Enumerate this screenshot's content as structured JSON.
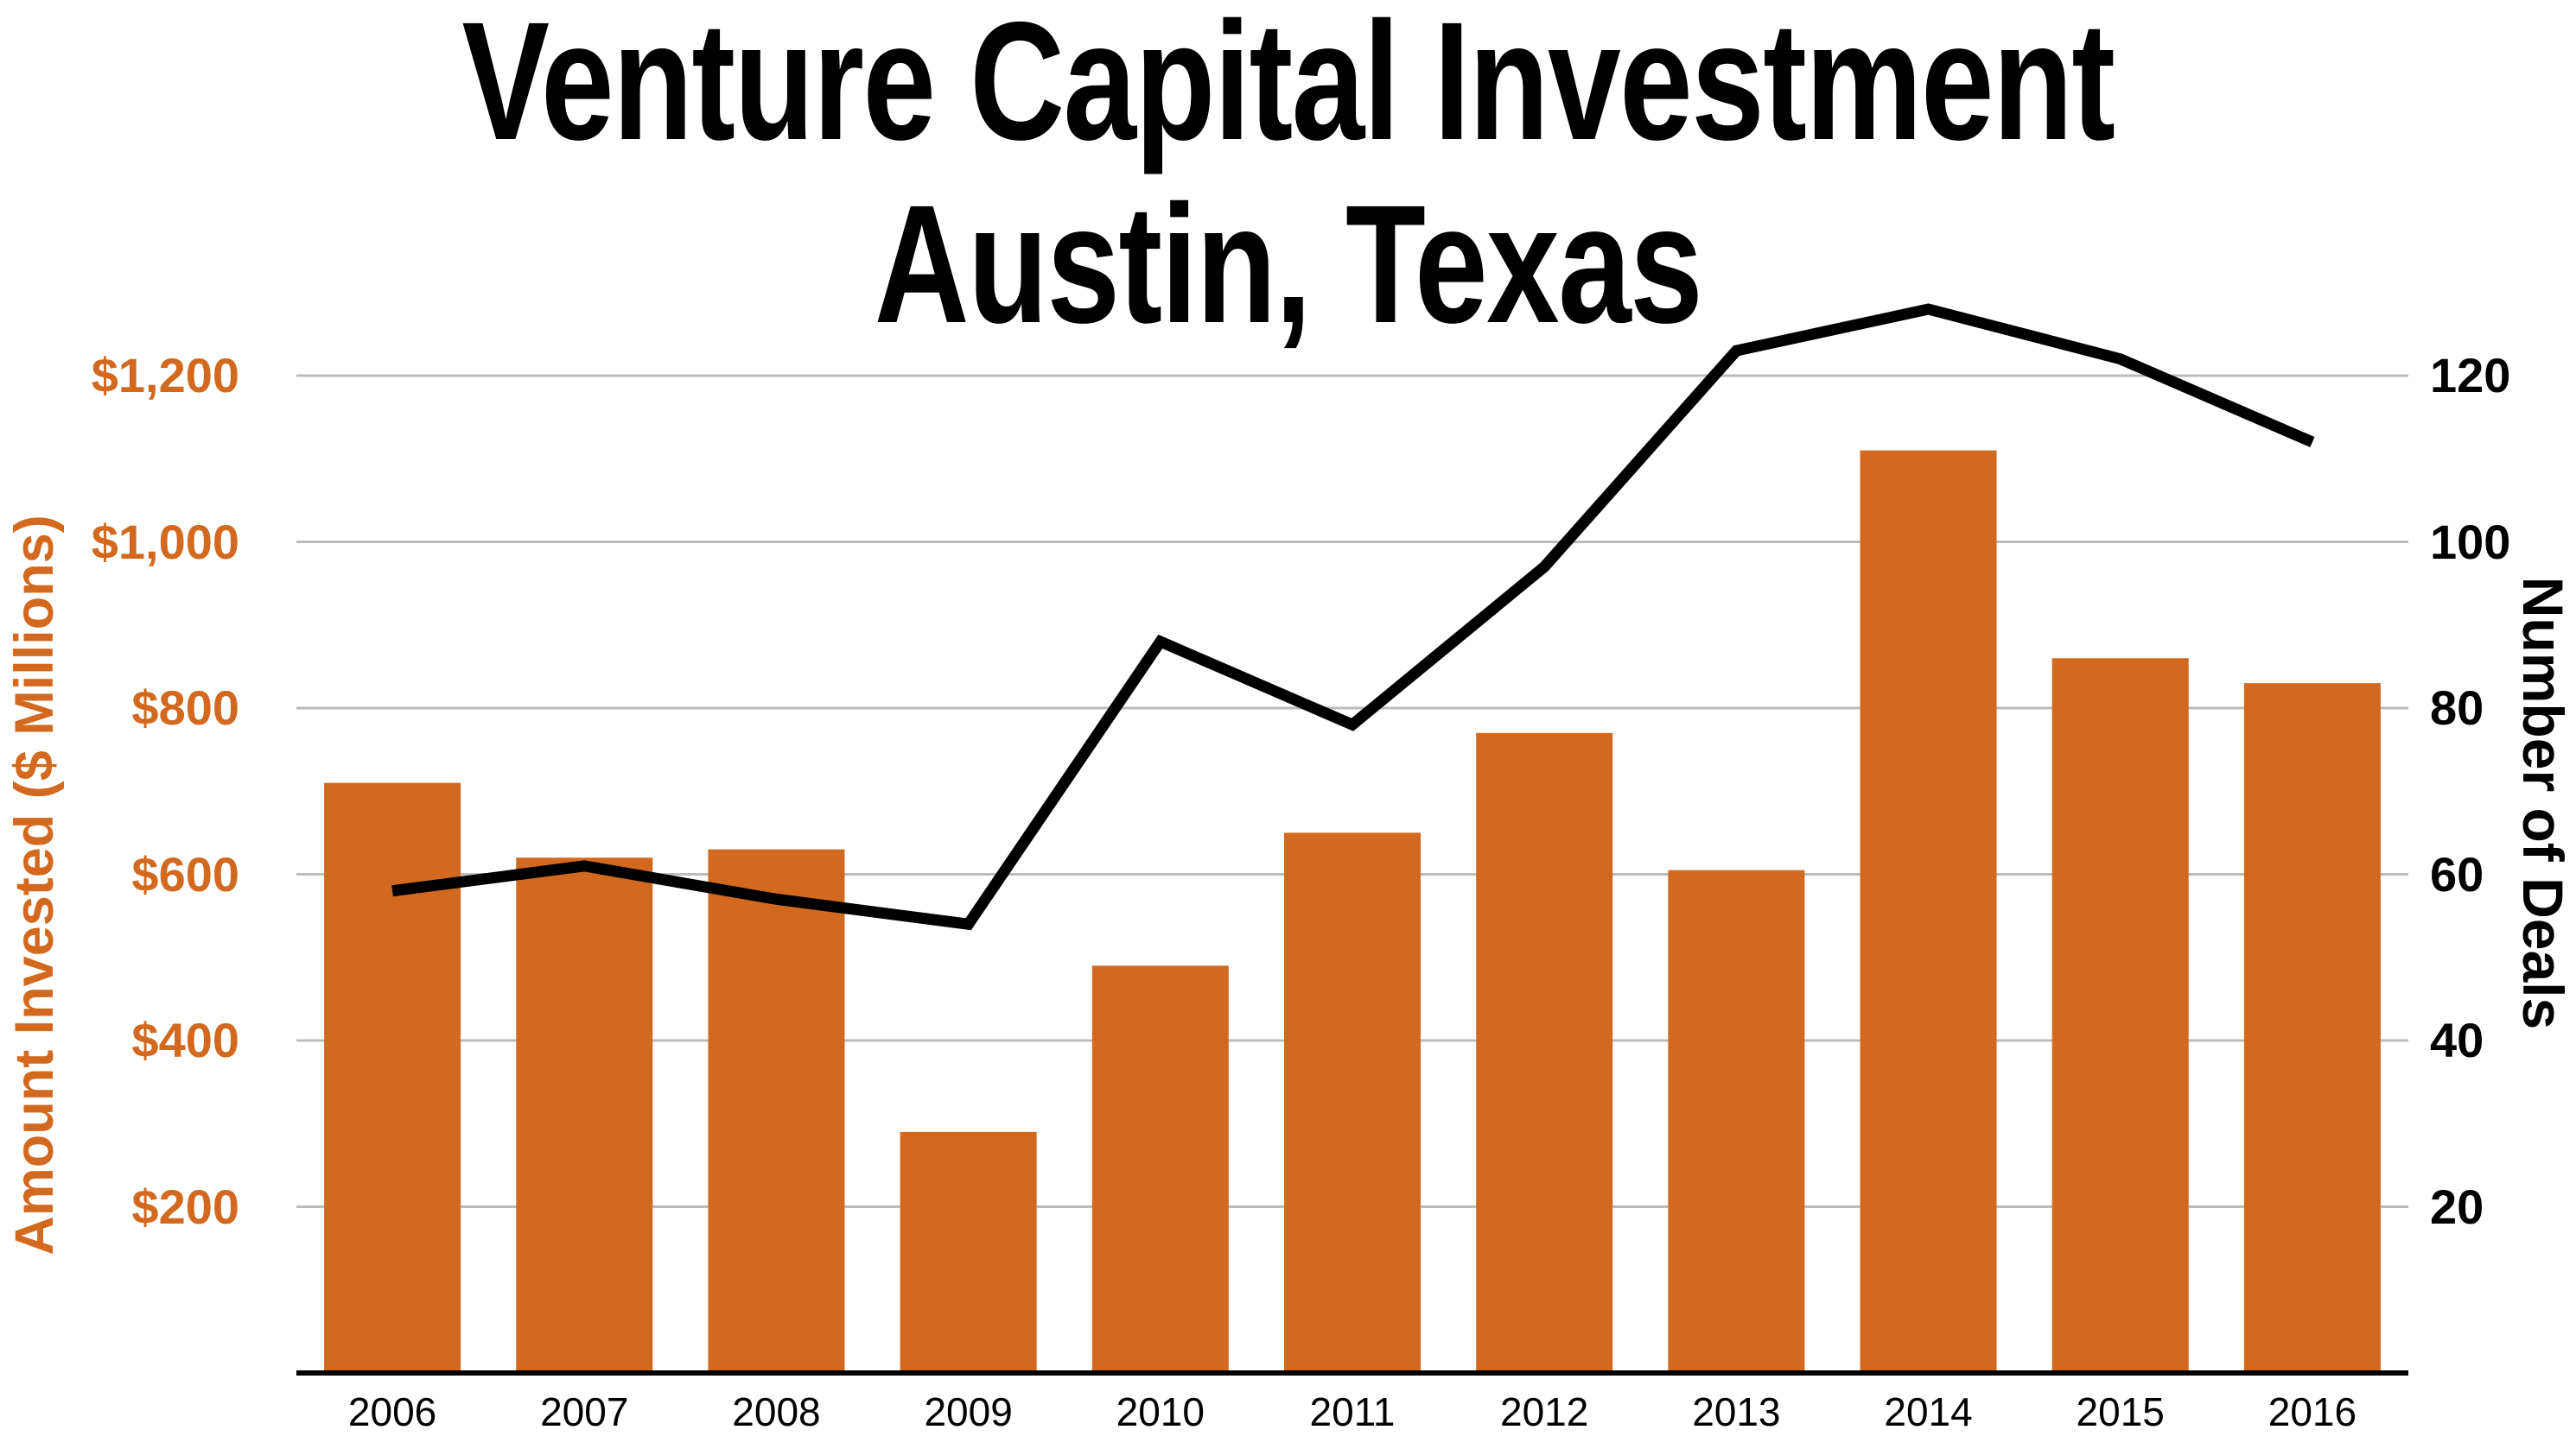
{
  "title": {
    "line1": "Venture Capital Investment",
    "line2": "Austin, Texas"
  },
  "chart_data": {
    "type": "combo-bar-line",
    "categories": [
      "2006",
      "2007",
      "2008",
      "2009",
      "2010",
      "2011",
      "2012",
      "2013",
      "2014",
      "2015",
      "2016"
    ],
    "series": [
      {
        "name": "Amount Invested ($ Millions)",
        "type": "bar",
        "axis": "left",
        "color": "#d2691e",
        "values": [
          710,
          620,
          630,
          290,
          490,
          650,
          770,
          605,
          1110,
          860,
          830
        ]
      },
      {
        "name": "Number of Deals",
        "type": "line",
        "axis": "right",
        "color": "#000000",
        "values": [
          58,
          61,
          57,
          54,
          88,
          78,
          97,
          123,
          128,
          122,
          112
        ]
      }
    ],
    "left_axis": {
      "title": "Amount Invested ($ Millions)",
      "tick_labels": [
        "$1,200",
        "$1,000",
        "$800",
        "$600",
        "$400",
        "$200"
      ],
      "tick_values": [
        1200,
        1000,
        800,
        600,
        400,
        200
      ],
      "range": [
        0,
        1300
      ]
    },
    "right_axis": {
      "title": "Number of Deals",
      "tick_labels": [
        "120",
        "100",
        "80",
        "60",
        "40",
        "20"
      ],
      "tick_values": [
        120,
        100,
        80,
        60,
        40,
        20
      ],
      "range": [
        0,
        130
      ]
    },
    "grid": true,
    "legend": false
  },
  "colors": {
    "bar": "#d2691e",
    "line": "#000000",
    "grid": "#bcbcbc",
    "axis_line": "#000000",
    "left_text": "#d2691e",
    "right_text": "#000000",
    "background": "#ffffff"
  }
}
